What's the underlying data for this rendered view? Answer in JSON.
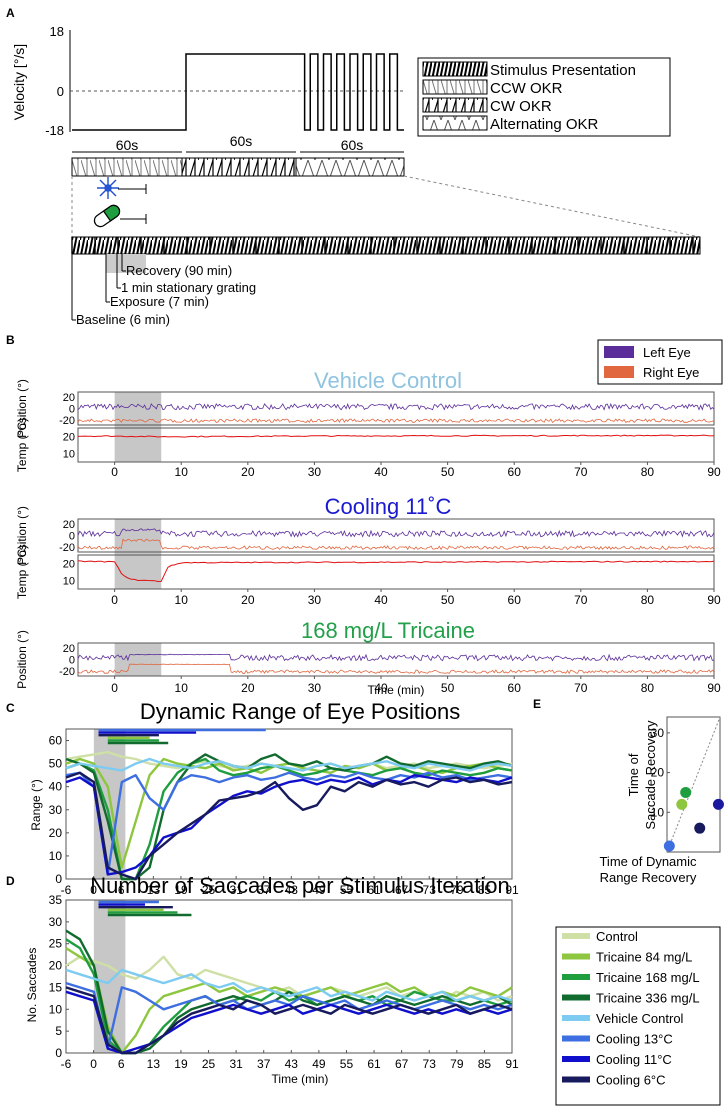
{
  "panel_letters": [
    "A",
    "B",
    "C",
    "D",
    "E"
  ],
  "panelA": {
    "ylabel": "Velocity [°/s]",
    "yticks": [
      "18",
      "0",
      "-18"
    ],
    "durations": [
      "60s",
      "60s",
      "60s"
    ],
    "legend": [
      "Stimulus Presentation",
      "CCW OKR",
      "CW OKR",
      "Alternating OKR"
    ],
    "timeline": [
      "Recovery (90 min)",
      "1 min stationary grating",
      "Exposure (7 min)",
      "Baseline (6 min)"
    ],
    "alt_cycles": 8
  },
  "panelB": {
    "legend": [
      {
        "label": "Left Eye",
        "color": "#5b2d9a"
      },
      {
        "label": "Right Eye",
        "color": "#e0673f"
      }
    ],
    "xticks": [
      "0",
      "10",
      "20",
      "30",
      "40",
      "50",
      "60",
      "70",
      "80",
      "90"
    ],
    "xlabel": "Time (min)",
    "pos_label": "Position (°)",
    "temp_label": "Temp (°C)",
    "pos_ticks": [
      "20",
      "0",
      "-20"
    ],
    "temp_ticks": [
      "20",
      "10"
    ],
    "conditions": [
      {
        "title": "Vehicle Control",
        "color": "#8fc3e0",
        "has_temp": true,
        "temp_profile": [
          [
            -5,
            20.3
          ],
          [
            0,
            20.2
          ],
          [
            7,
            19.9
          ],
          [
            30,
            20.3
          ],
          [
            90,
            20.6
          ]
        ],
        "exposure": [
          0,
          7
        ],
        "flat": []
      },
      {
        "title": "Cooling 11˚C",
        "color": "#1a1ad0",
        "has_temp": true,
        "temp_profile": [
          [
            -5,
            21.3
          ],
          [
            0,
            21.0
          ],
          [
            1,
            14
          ],
          [
            2.5,
            10.5
          ],
          [
            7,
            9.5
          ],
          [
            8,
            18
          ],
          [
            10,
            20.5
          ],
          [
            90,
            21.2
          ]
        ],
        "exposure": [
          0,
          7
        ],
        "flat": []
      },
      {
        "title": "168 mg/L Tricaine",
        "color": "#22a04a",
        "has_temp": false,
        "temp_profile": [],
        "exposure": [
          0,
          7
        ],
        "flat": [
          2,
          17.5
        ]
      }
    ]
  },
  "chart_data": [
    {
      "type": "line",
      "panel": "C",
      "title": "Dynamic Range of Eye Positions",
      "xlabel": "",
      "ylabel": "Range (°)",
      "x": [
        -6,
        -3,
        0,
        3,
        6,
        9,
        12,
        15,
        18,
        21,
        24,
        27,
        30,
        33,
        36,
        39,
        42,
        45,
        48,
        51,
        54,
        57,
        60,
        63,
        66,
        69,
        72,
        75,
        78,
        81,
        84,
        87,
        90
      ],
      "xticks": [
        "-6",
        "0",
        "6",
        "13",
        "19",
        "25",
        "31",
        "37",
        "43",
        "49",
        "55",
        "61",
        "67",
        "73",
        "79",
        "85",
        "91"
      ],
      "ylim": [
        0,
        65
      ],
      "yticks": [
        "0",
        "10",
        "20",
        "30",
        "40",
        "50",
        "60"
      ],
      "shaded": [
        0,
        7
      ],
      "series": [
        {
          "name": "Control",
          "color": "#cfe0a6",
          "values": [
            52,
            53,
            54,
            55,
            53,
            52,
            50,
            49,
            48,
            50,
            51,
            49,
            48,
            49,
            50,
            49,
            48,
            47,
            49,
            50,
            48,
            49,
            50,
            48,
            49,
            50,
            48,
            49,
            50,
            49,
            48,
            49,
            50
          ]
        },
        {
          "name": "Tricaine 84 mg/L",
          "color": "#8ec63f",
          "values": [
            50,
            52,
            50,
            40,
            5,
            25,
            45,
            52,
            50,
            49,
            48,
            50,
            47,
            48,
            46,
            49,
            50,
            48,
            47,
            46,
            49,
            48,
            50,
            47,
            48,
            49,
            47,
            46,
            48,
            49,
            50,
            48,
            47
          ]
        },
        {
          "name": "Tricaine 168 mg/L",
          "color": "#1f9e3f",
          "values": [
            48,
            50,
            47,
            30,
            0,
            0,
            15,
            38,
            46,
            50,
            52,
            47,
            45,
            46,
            48,
            49,
            47,
            45,
            46,
            48,
            47,
            46,
            45,
            47,
            48,
            46,
            45,
            47,
            46,
            45,
            46,
            48,
            47
          ]
        },
        {
          "name": "Tricaine 336 mg/L",
          "color": "#126b2e",
          "values": [
            52,
            50,
            46,
            25,
            0,
            0,
            5,
            30,
            42,
            50,
            54,
            51,
            49,
            48,
            52,
            54,
            50,
            49,
            51,
            48,
            47,
            49,
            50,
            53,
            50,
            49,
            51,
            50,
            49,
            48,
            50,
            51,
            49
          ]
        },
        {
          "name": "Vehicle Control",
          "color": "#7ecbf2",
          "values": [
            48,
            50,
            49,
            48,
            47,
            50,
            52,
            50,
            49,
            48,
            50,
            51,
            49,
            48,
            50,
            49,
            48,
            47,
            49,
            50,
            48,
            49,
            50,
            51,
            49,
            48,
            50,
            49,
            48,
            47,
            49,
            50,
            49
          ]
        },
        {
          "name": "Cooling 13°C",
          "color": "#3e6fe0",
          "values": [
            45,
            46,
            40,
            2,
            42,
            45,
            35,
            30,
            42,
            45,
            44,
            42,
            44,
            45,
            43,
            44,
            46,
            44,
            43,
            45,
            44,
            46,
            44,
            43,
            45,
            44,
            46,
            44,
            45,
            43,
            44,
            45,
            44
          ]
        },
        {
          "name": "Cooling 11°C",
          "color": "#1010cc",
          "values": [
            42,
            44,
            40,
            2,
            3,
            5,
            10,
            18,
            20,
            22,
            28,
            32,
            36,
            38,
            37,
            40,
            42,
            43,
            41,
            43,
            42,
            44,
            41,
            43,
            42,
            45,
            44,
            43,
            42,
            44,
            43,
            42,
            44
          ]
        },
        {
          "name": "Cooling 6°C",
          "color": "#171a5c",
          "values": [
            44,
            46,
            42,
            5,
            2,
            0,
            10,
            15,
            20,
            24,
            28,
            34,
            35,
            36,
            38,
            42,
            35,
            30,
            32,
            40,
            38,
            42,
            40,
            43,
            41,
            42,
            40,
            43,
            44,
            42,
            43,
            41,
            42
          ]
        }
      ],
      "sig_bars": [
        {
          "color": "#3e6fe0",
          "start": 1,
          "end": 37
        },
        {
          "color": "#1010cc",
          "start": 1,
          "end": 22
        },
        {
          "color": "#171a5c",
          "start": 1,
          "end": 14
        },
        {
          "color": "#8ec63f",
          "start": 3,
          "end": 12
        },
        {
          "color": "#1f9e3f",
          "start": 3,
          "end": 14
        },
        {
          "color": "#126b2e",
          "start": 3,
          "end": 16
        }
      ]
    },
    {
      "type": "line",
      "panel": "D",
      "title": "Number of Saccades per Stimulus Iteration",
      "xlabel": "Time (min)",
      "ylabel": "No. Saccades",
      "x": [
        -6,
        -3,
        0,
        3,
        6,
        9,
        12,
        15,
        18,
        21,
        24,
        27,
        30,
        33,
        36,
        39,
        42,
        45,
        48,
        51,
        54,
        57,
        60,
        63,
        66,
        69,
        72,
        75,
        78,
        81,
        84,
        87,
        90
      ],
      "xticks": [
        "-6",
        "0",
        "6",
        "13",
        "19",
        "25",
        "31",
        "37",
        "43",
        "49",
        "55",
        "61",
        "67",
        "73",
        "79",
        "85",
        "91"
      ],
      "ylim": [
        0,
        35
      ],
      "yticks": [
        "0",
        "5",
        "10",
        "15",
        "20",
        "25",
        "30",
        "35"
      ],
      "shaded": [
        0,
        7
      ],
      "series": [
        {
          "name": "Control",
          "color": "#cfe0a6",
          "values": [
            20,
            22,
            21,
            20,
            18,
            17,
            19,
            22,
            18,
            17,
            19,
            18,
            17,
            16,
            15,
            14,
            15,
            13,
            14,
            15,
            14,
            13,
            14,
            15,
            13,
            14,
            13,
            12,
            14,
            13,
            14,
            12,
            13
          ]
        },
        {
          "name": "Tricaine 84 mg/L",
          "color": "#8ec63f",
          "values": [
            24,
            22,
            20,
            6,
            0,
            4,
            10,
            13,
            14,
            15,
            16,
            14,
            15,
            13,
            14,
            15,
            14,
            13,
            14,
            15,
            13,
            14,
            15,
            16,
            14,
            15,
            13,
            14,
            13,
            15,
            14,
            13,
            15
          ]
        },
        {
          "name": "Tricaine 168 mg/L",
          "color": "#1f9e3f",
          "values": [
            26,
            24,
            18,
            3,
            0,
            0,
            2,
            6,
            9,
            12,
            13,
            11,
            12,
            13,
            12,
            14,
            12,
            13,
            11,
            12,
            13,
            12,
            13,
            11,
            12,
            14,
            13,
            12,
            12,
            13,
            12,
            11,
            12
          ]
        },
        {
          "name": "Tricaine 336 mg/L",
          "color": "#126b2e",
          "values": [
            28,
            26,
            20,
            5,
            0,
            0,
            1,
            4,
            8,
            10,
            11,
            12,
            13,
            12,
            11,
            12,
            14,
            12,
            11,
            12,
            13,
            12,
            11,
            13,
            12,
            11,
            12,
            13,
            12,
            11,
            12,
            13,
            11
          ]
        },
        {
          "name": "Vehicle Control",
          "color": "#7ecbf2",
          "values": [
            19,
            18,
            17,
            16,
            19,
            18,
            17,
            16,
            17,
            18,
            16,
            15,
            16,
            14,
            15,
            14,
            13,
            14,
            15,
            13,
            14,
            13,
            12,
            14,
            13,
            12,
            13,
            14,
            12,
            13,
            12,
            13,
            12
          ]
        },
        {
          "name": "Cooling 13°C",
          "color": "#3e6fe0",
          "values": [
            16,
            15,
            14,
            1,
            15,
            14,
            12,
            10,
            11,
            12,
            13,
            11,
            12,
            10,
            11,
            12,
            11,
            13,
            12,
            11,
            12,
            10,
            11,
            12,
            11,
            10,
            11,
            12,
            11,
            10,
            11,
            10,
            11
          ]
        },
        {
          "name": "Cooling 11°C",
          "color": "#1010cc",
          "values": [
            14,
            13,
            12,
            1,
            0,
            1,
            2,
            4,
            6,
            8,
            9,
            10,
            11,
            10,
            9,
            10,
            11,
            9,
            10,
            11,
            10,
            9,
            10,
            11,
            10,
            9,
            10,
            9,
            10,
            9,
            10,
            9,
            10
          ]
        },
        {
          "name": "Cooling 6°C",
          "color": "#171a5c",
          "values": [
            15,
            14,
            13,
            2,
            0,
            0,
            2,
            4,
            7,
            9,
            10,
            11,
            10,
            12,
            11,
            9,
            10,
            11,
            10,
            9,
            11,
            10,
            9,
            10,
            11,
            10,
            9,
            10,
            11,
            9,
            10,
            11,
            10
          ]
        }
      ],
      "sig_bars": [
        {
          "color": "#3e6fe0",
          "start": 1,
          "end": 14
        },
        {
          "color": "#1010cc",
          "start": 1,
          "end": 11
        },
        {
          "color": "#171a5c",
          "start": 1,
          "end": 17
        },
        {
          "color": "#8ec63f",
          "start": 3,
          "end": 15
        },
        {
          "color": "#1f9e3f",
          "start": 3,
          "end": 18
        },
        {
          "color": "#126b2e",
          "start": 3,
          "end": 21
        }
      ]
    },
    {
      "type": "scatter",
      "panel": "E",
      "xlabel": "Time of Dynamic Range Recovery",
      "ylabel": "Time of Saccade Recovery",
      "xlim": [
        0,
        34
      ],
      "ylim": [
        0,
        34
      ],
      "yticks": [
        "10",
        "20",
        "30"
      ],
      "identity_line": true,
      "points": [
        {
          "name": "Cooling 13°C",
          "color": "#3e6fe0",
          "x": 1.5,
          "y": 1.5
        },
        {
          "name": "Tricaine 84 mg/L",
          "color": "#8ec63f",
          "x": 9.5,
          "y": 12
        },
        {
          "name": "Tricaine 168 mg/L",
          "color": "#1f9e3f",
          "x": 12,
          "y": 15
        },
        {
          "name": "Cooling 6°C",
          "color": "#171a5c",
          "x": 21,
          "y": 6
        },
        {
          "name": "Cooling 11°C",
          "color": "#1a1aa0",
          "x": 33,
          "y": 12
        }
      ]
    }
  ],
  "legendD": [
    {
      "label": "Control",
      "color": "#cfe0a6"
    },
    {
      "label": "Tricaine 84 mg/L",
      "color": "#8ec63f"
    },
    {
      "label": "Tricaine 168 mg/L",
      "color": "#1f9e3f"
    },
    {
      "label": "Tricaine 336 mg/L",
      "color": "#126b2e"
    },
    {
      "label": "Vehicle Control",
      "color": "#7ecbf2"
    },
    {
      "label": "Cooling 13°C",
      "color": "#3e6fe0"
    },
    {
      "label": "Cooling 11°C",
      "color": "#1010cc"
    },
    {
      "label": "Cooling 6°C",
      "color": "#171a5c"
    }
  ]
}
